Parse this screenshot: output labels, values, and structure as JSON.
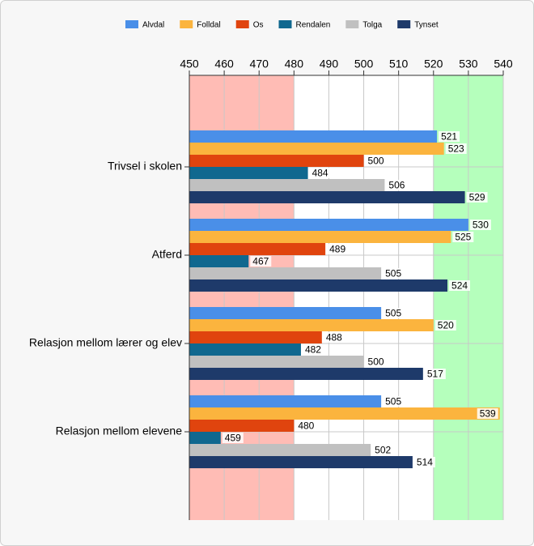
{
  "chart_data": {
    "type": "hbar",
    "categories": [
      "Trivsel i skolen",
      "Atferd",
      "Relasjon mellom lærer og elev",
      "Relasjon mellom elevene"
    ],
    "series": [
      {
        "name": "Alvdal",
        "color": "#4a8fe8",
        "values": [
          521,
          530,
          505,
          505
        ]
      },
      {
        "name": "Folldal",
        "color": "#fbb43e",
        "values": [
          523,
          525,
          520,
          539
        ]
      },
      {
        "name": "Os",
        "color": "#e0440e",
        "values": [
          500,
          489,
          488,
          480
        ]
      },
      {
        "name": "Rendalen",
        "color": "#10688f",
        "values": [
          484,
          467,
          482,
          459
        ]
      },
      {
        "name": "Tolga",
        "color": "#c0c0c0",
        "values": [
          506,
          505,
          500,
          502
        ]
      },
      {
        "name": "Tynset",
        "color": "#1e3a6a",
        "values": [
          529,
          524,
          517,
          514
        ]
      }
    ],
    "xlim": [
      450,
      540
    ],
    "xticks": [
      450,
      460,
      470,
      480,
      490,
      500,
      510,
      520,
      530,
      540
    ],
    "bands": [
      {
        "from": 450,
        "to": 480,
        "color": "#ffbcb5"
      },
      {
        "from": 520,
        "to": 540,
        "color": "#b5ffbc"
      }
    ],
    "grid": true,
    "legend": "top"
  }
}
